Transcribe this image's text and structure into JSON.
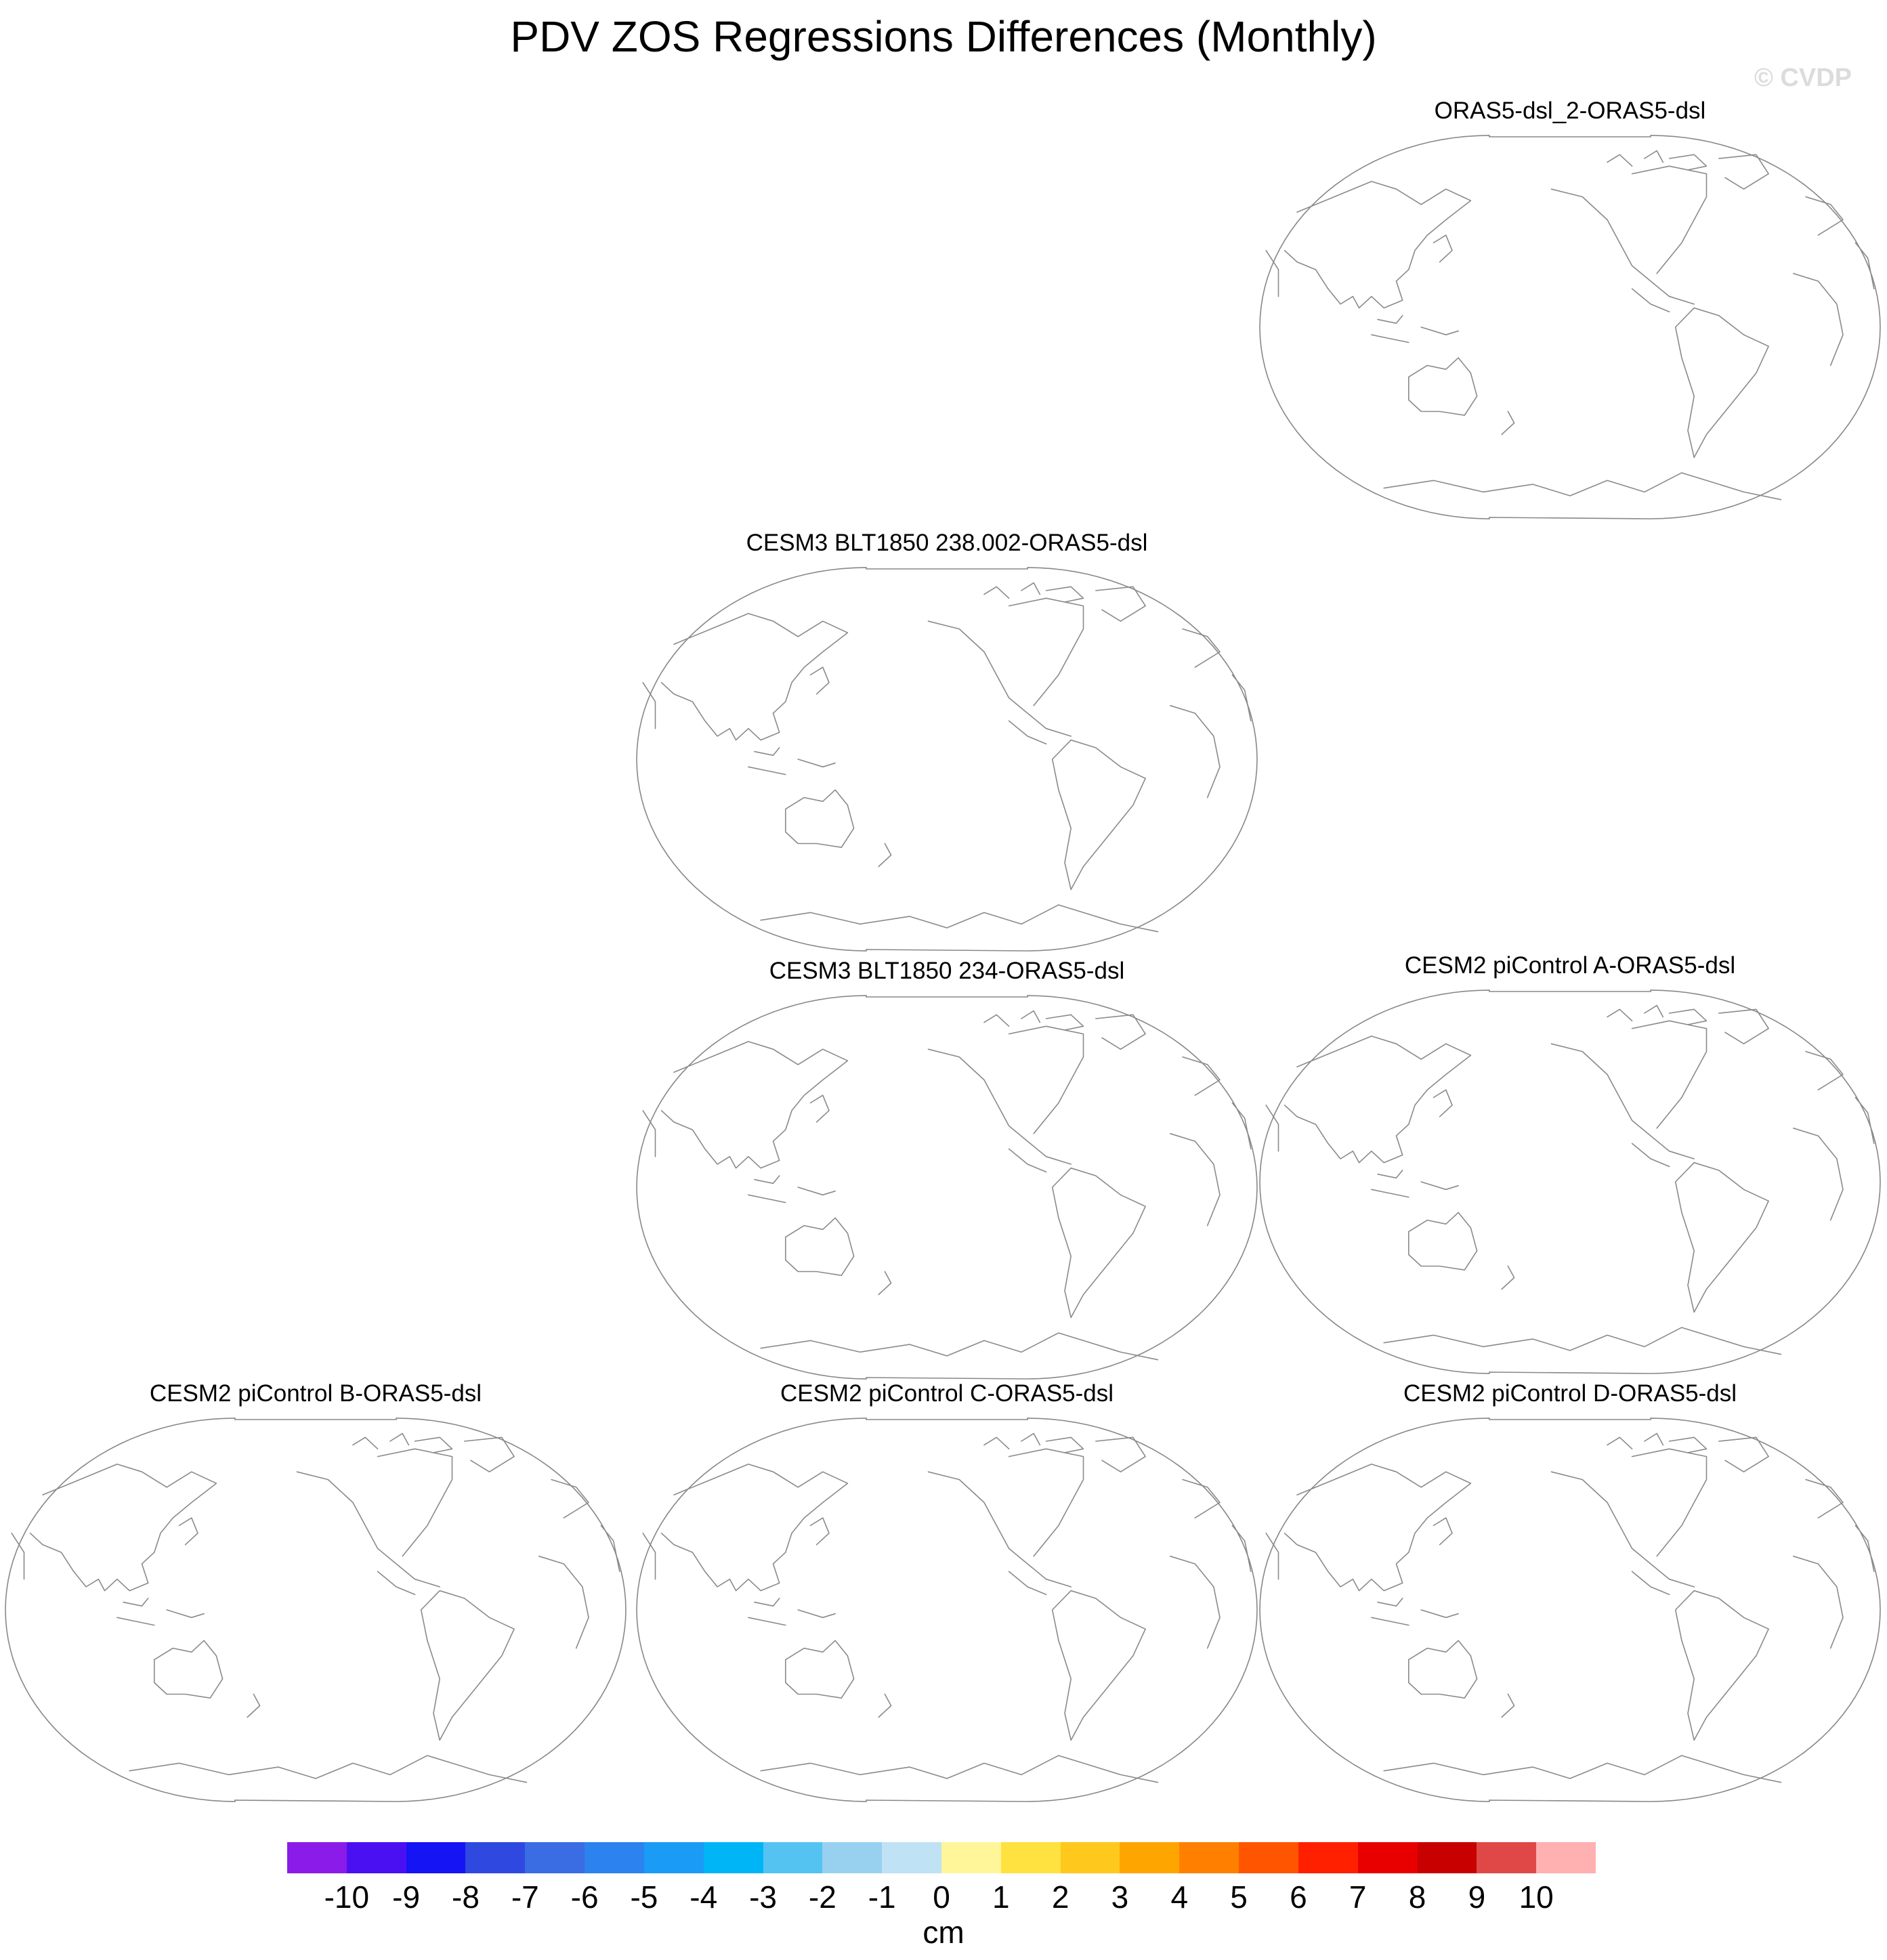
{
  "title": "PDV ZOS Regressions Differences (Monthly)",
  "watermark": "© CVDP",
  "panels": [
    {
      "title": "ORAS5-dsl_2-ORAS5-dsl"
    },
    {
      "title": "CESM3 BLT1850 238.002-ORAS5-dsl"
    },
    {
      "title": "CESM3 BLT1850 234-ORAS5-dsl"
    },
    {
      "title": "CESM2 piControl A-ORAS5-dsl"
    },
    {
      "title": "CESM2 piControl B-ORAS5-dsl"
    },
    {
      "title": "CESM2 piControl C-ORAS5-dsl"
    },
    {
      "title": "CESM2 piControl D-ORAS5-dsl"
    }
  ],
  "colorbar": {
    "units": "cm",
    "labels": [
      "-10",
      "-9",
      "-8",
      "-7",
      "-6",
      "-5",
      "-4",
      "-3",
      "-2",
      "-1",
      "0",
      "1",
      "2",
      "3",
      "4",
      "5",
      "6",
      "7",
      "8",
      "9",
      "10"
    ],
    "colors": [
      "#8a1be8",
      "#4a10f2",
      "#1414f5",
      "#2f49e0",
      "#3a6de4",
      "#2c82ef",
      "#1a9bf5",
      "#00b5f5",
      "#55c3f2",
      "#98d1ef",
      "#bfe2f4",
      "#fff69a",
      "#ffe140",
      "#ffc81c",
      "#ffa500",
      "#ff8000",
      "#ff5500",
      "#ff2000",
      "#e80000",
      "#c80000",
      "#e04848",
      "#ffb0b0"
    ]
  }
}
